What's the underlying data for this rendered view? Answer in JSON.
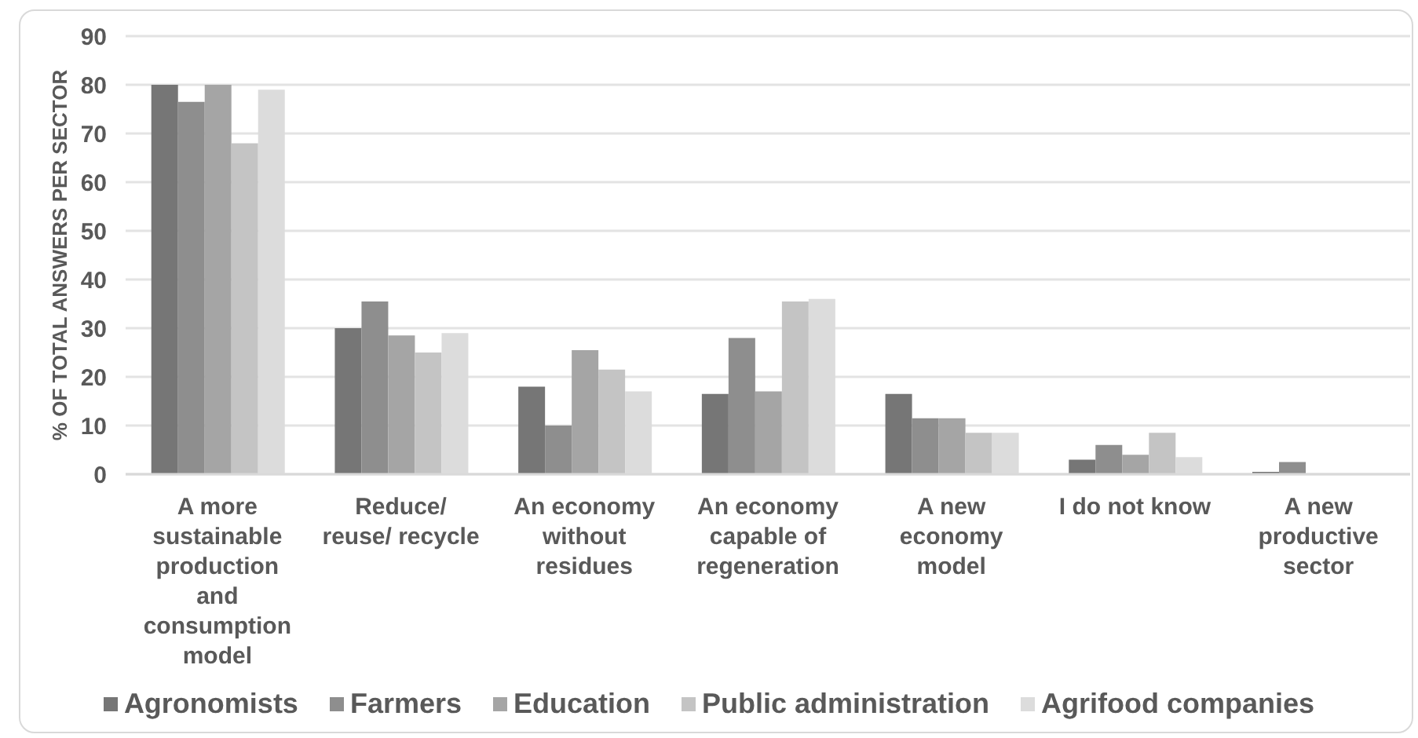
{
  "chart_data": {
    "type": "bar",
    "ylabel": "% OF TOTAL ANSWERS PER SECTOR",
    "categories": [
      "A more sustainable production and consumption model",
      "Reduce/ reuse/ recycle",
      "An economy without residues",
      "An economy capable of regeneration",
      "A new economy model",
      "I do not know",
      "A new productive sector"
    ],
    "series": [
      {
        "name": "Agronomists",
        "color": "#767676",
        "values": [
          80,
          30,
          18,
          16.5,
          16.5,
          3,
          0.5
        ]
      },
      {
        "name": "Farmers",
        "color": "#8e8e8e",
        "values": [
          76.5,
          35.5,
          10,
          28,
          11.5,
          6,
          2.5
        ]
      },
      {
        "name": "Education",
        "color": "#a5a5a5",
        "values": [
          80,
          28.5,
          25.5,
          17,
          11.5,
          4,
          0
        ]
      },
      {
        "name": "Public administration",
        "color": "#c4c4c4",
        "values": [
          68,
          25,
          21.5,
          35.5,
          8.5,
          8.5,
          0
        ]
      },
      {
        "name": "Agrifood companies",
        "color": "#dcdcdc",
        "values": [
          79,
          29,
          17,
          36,
          8.5,
          3.5,
          0
        ]
      }
    ],
    "ylim": [
      0,
      90
    ],
    "yticks": [
      0,
      10,
      20,
      30,
      40,
      50,
      60,
      70,
      80,
      90
    ],
    "grid": "y",
    "legend": "bottom"
  }
}
